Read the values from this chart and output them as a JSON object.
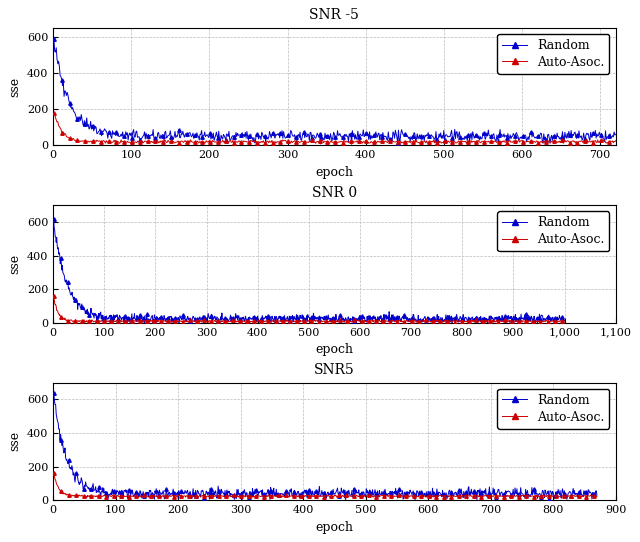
{
  "subplots": [
    {
      "title": "SNR -5",
      "xlabel": "epoch",
      "ylabel": "sse",
      "xlim": [
        0,
        720
      ],
      "ylim": [
        0,
        650
      ],
      "xticks": [
        0,
        100,
        200,
        300,
        400,
        500,
        600,
        700
      ],
      "yticks": [
        0,
        200,
        400,
        600
      ],
      "n_epochs_blue": 720,
      "n_epochs_red": 720,
      "blue_peak": 600,
      "red_peak": 200,
      "blue_decay": 20,
      "red_decay": 10,
      "blue_noise_std": 20,
      "red_noise_std": 5,
      "blue_floor": 50,
      "red_floor": 20,
      "blue_long_noise": 15,
      "red_long_noise": 4
    },
    {
      "title": "SNR 0",
      "xlabel": "epoch",
      "ylabel": "sse",
      "xlim": [
        0,
        1100
      ],
      "ylim": [
        0,
        700
      ],
      "xticks": [
        0,
        100,
        200,
        300,
        400,
        500,
        600,
        700,
        800,
        900,
        1000,
        1100
      ],
      "yticks": [
        0,
        200,
        400,
        600
      ],
      "n_epochs_blue": 1000,
      "n_epochs_red": 1000,
      "blue_peak": 630,
      "red_peak": 180,
      "blue_decay": 25,
      "red_decay": 8,
      "blue_noise_std": 15,
      "red_noise_std": 4,
      "blue_floor": 25,
      "red_floor": 10,
      "blue_long_noise": 12,
      "red_long_noise": 3
    },
    {
      "title": "SNR5",
      "xlabel": "epoch",
      "ylabel": "sse",
      "xlim": [
        0,
        900
      ],
      "ylim": [
        0,
        700
      ],
      "xticks": [
        0,
        100,
        200,
        300,
        400,
        500,
        600,
        700,
        800,
        900
      ],
      "yticks": [
        0,
        200,
        400,
        600
      ],
      "n_epochs_blue": 870,
      "n_epochs_red": 870,
      "blue_peak": 660,
      "red_peak": 175,
      "blue_decay": 20,
      "red_decay": 8,
      "blue_noise_std": 20,
      "red_noise_std": 4,
      "blue_floor": 40,
      "red_floor": 25,
      "blue_long_noise": 15,
      "red_long_noise": 3
    }
  ],
  "blue_color": "#0000cc",
  "red_color": "#cc0000",
  "blue_label": "Random",
  "red_label": "Auto-Asoc.",
  "grid_color": "#bbbbbb",
  "grid_linestyle": "--",
  "bg_color": "#ffffff",
  "marker": "^",
  "marker_size": 2.5,
  "linewidth": 0.7,
  "title_fontsize": 10,
  "label_fontsize": 9,
  "tick_fontsize": 8
}
